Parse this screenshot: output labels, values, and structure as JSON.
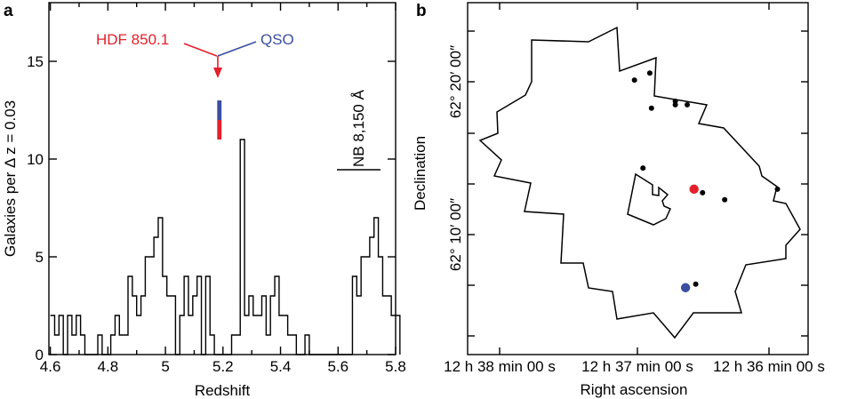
{
  "panels": {
    "a": {
      "label": "a"
    },
    "b": {
      "label": "b"
    }
  },
  "colors": {
    "red": "#e3202b",
    "blue": "#3b4fa0",
    "black": "#000000"
  },
  "chart_data": [
    {
      "panel": "a",
      "type": "bar",
      "style": "step-histogram",
      "xlabel": "Redshift",
      "ylabel": "Galaxies per Δ z = 0.03",
      "xlim": [
        4.595,
        5.8
      ],
      "ylim": [
        0,
        18
      ],
      "xticks": [
        4.6,
        4.8,
        5.0,
        5.2,
        5.4,
        5.6,
        5.8
      ],
      "xtick_labels": [
        "4.6",
        "4.8",
        "5",
        "5.2",
        "5.4",
        "5.6",
        "5.8"
      ],
      "yticks": [
        0,
        5,
        10,
        15
      ],
      "ytick_labels": [
        "0",
        "5",
        "10",
        "15"
      ],
      "bin_width": 0.015,
      "bin_start": 4.6,
      "values": [
        2,
        1,
        2,
        0,
        2,
        1,
        2,
        1,
        0,
        0,
        0,
        1,
        0,
        0,
        1,
        2,
        1,
        1,
        4,
        3,
        2,
        3,
        5,
        5,
        6,
        7,
        4,
        3,
        3,
        0,
        2,
        4,
        2,
        3,
        4,
        0,
        4,
        1,
        0,
        0,
        0,
        0,
        1,
        1,
        11,
        2,
        3,
        2,
        2,
        3,
        1,
        3,
        4,
        2,
        2,
        1,
        1,
        0,
        0,
        1,
        0,
        0,
        0,
        0,
        0,
        0,
        0,
        0,
        0,
        0,
        4,
        3,
        5,
        5,
        6,
        7,
        5,
        3,
        3,
        2,
        2
      ],
      "highlight_bar": {
        "x": 5.1875,
        "segments": [
          {
            "from": 11,
            "to": 12,
            "color": "red"
          },
          {
            "from": 12,
            "to": 13,
            "color": "blue"
          }
        ]
      },
      "annotations": {
        "hdf": "HDF 850.1",
        "qso": "QSO",
        "nb_filter": "NB 8,150 Å"
      }
    },
    {
      "panel": "b",
      "type": "scatter",
      "xlabel": "Right ascension",
      "ylabel": "Declination",
      "xtick_labels": [
        "12 h 38 min 00 s",
        "12 h 37 min 00 s",
        "12 h 36 min 00 s"
      ],
      "ytick_labels": [
        "62° 10′ 00″",
        "62° 20′ 00″"
      ],
      "points_black": [
        [
          -0.02,
          0.78
        ],
        [
          0.07,
          0.8
        ],
        [
          0.08,
          0.7
        ],
        [
          0.22,
          0.72
        ],
        [
          0.22,
          0.71
        ],
        [
          0.29,
          0.71
        ],
        [
          0.03,
          0.53
        ],
        [
          0.38,
          0.46
        ],
        [
          0.51,
          0.44
        ],
        [
          0.82,
          0.47
        ],
        [
          0.34,
          0.2
        ]
      ],
      "point_red": [
        0.33,
        0.47
      ],
      "point_blue": [
        0.28,
        0.19
      ]
    }
  ]
}
